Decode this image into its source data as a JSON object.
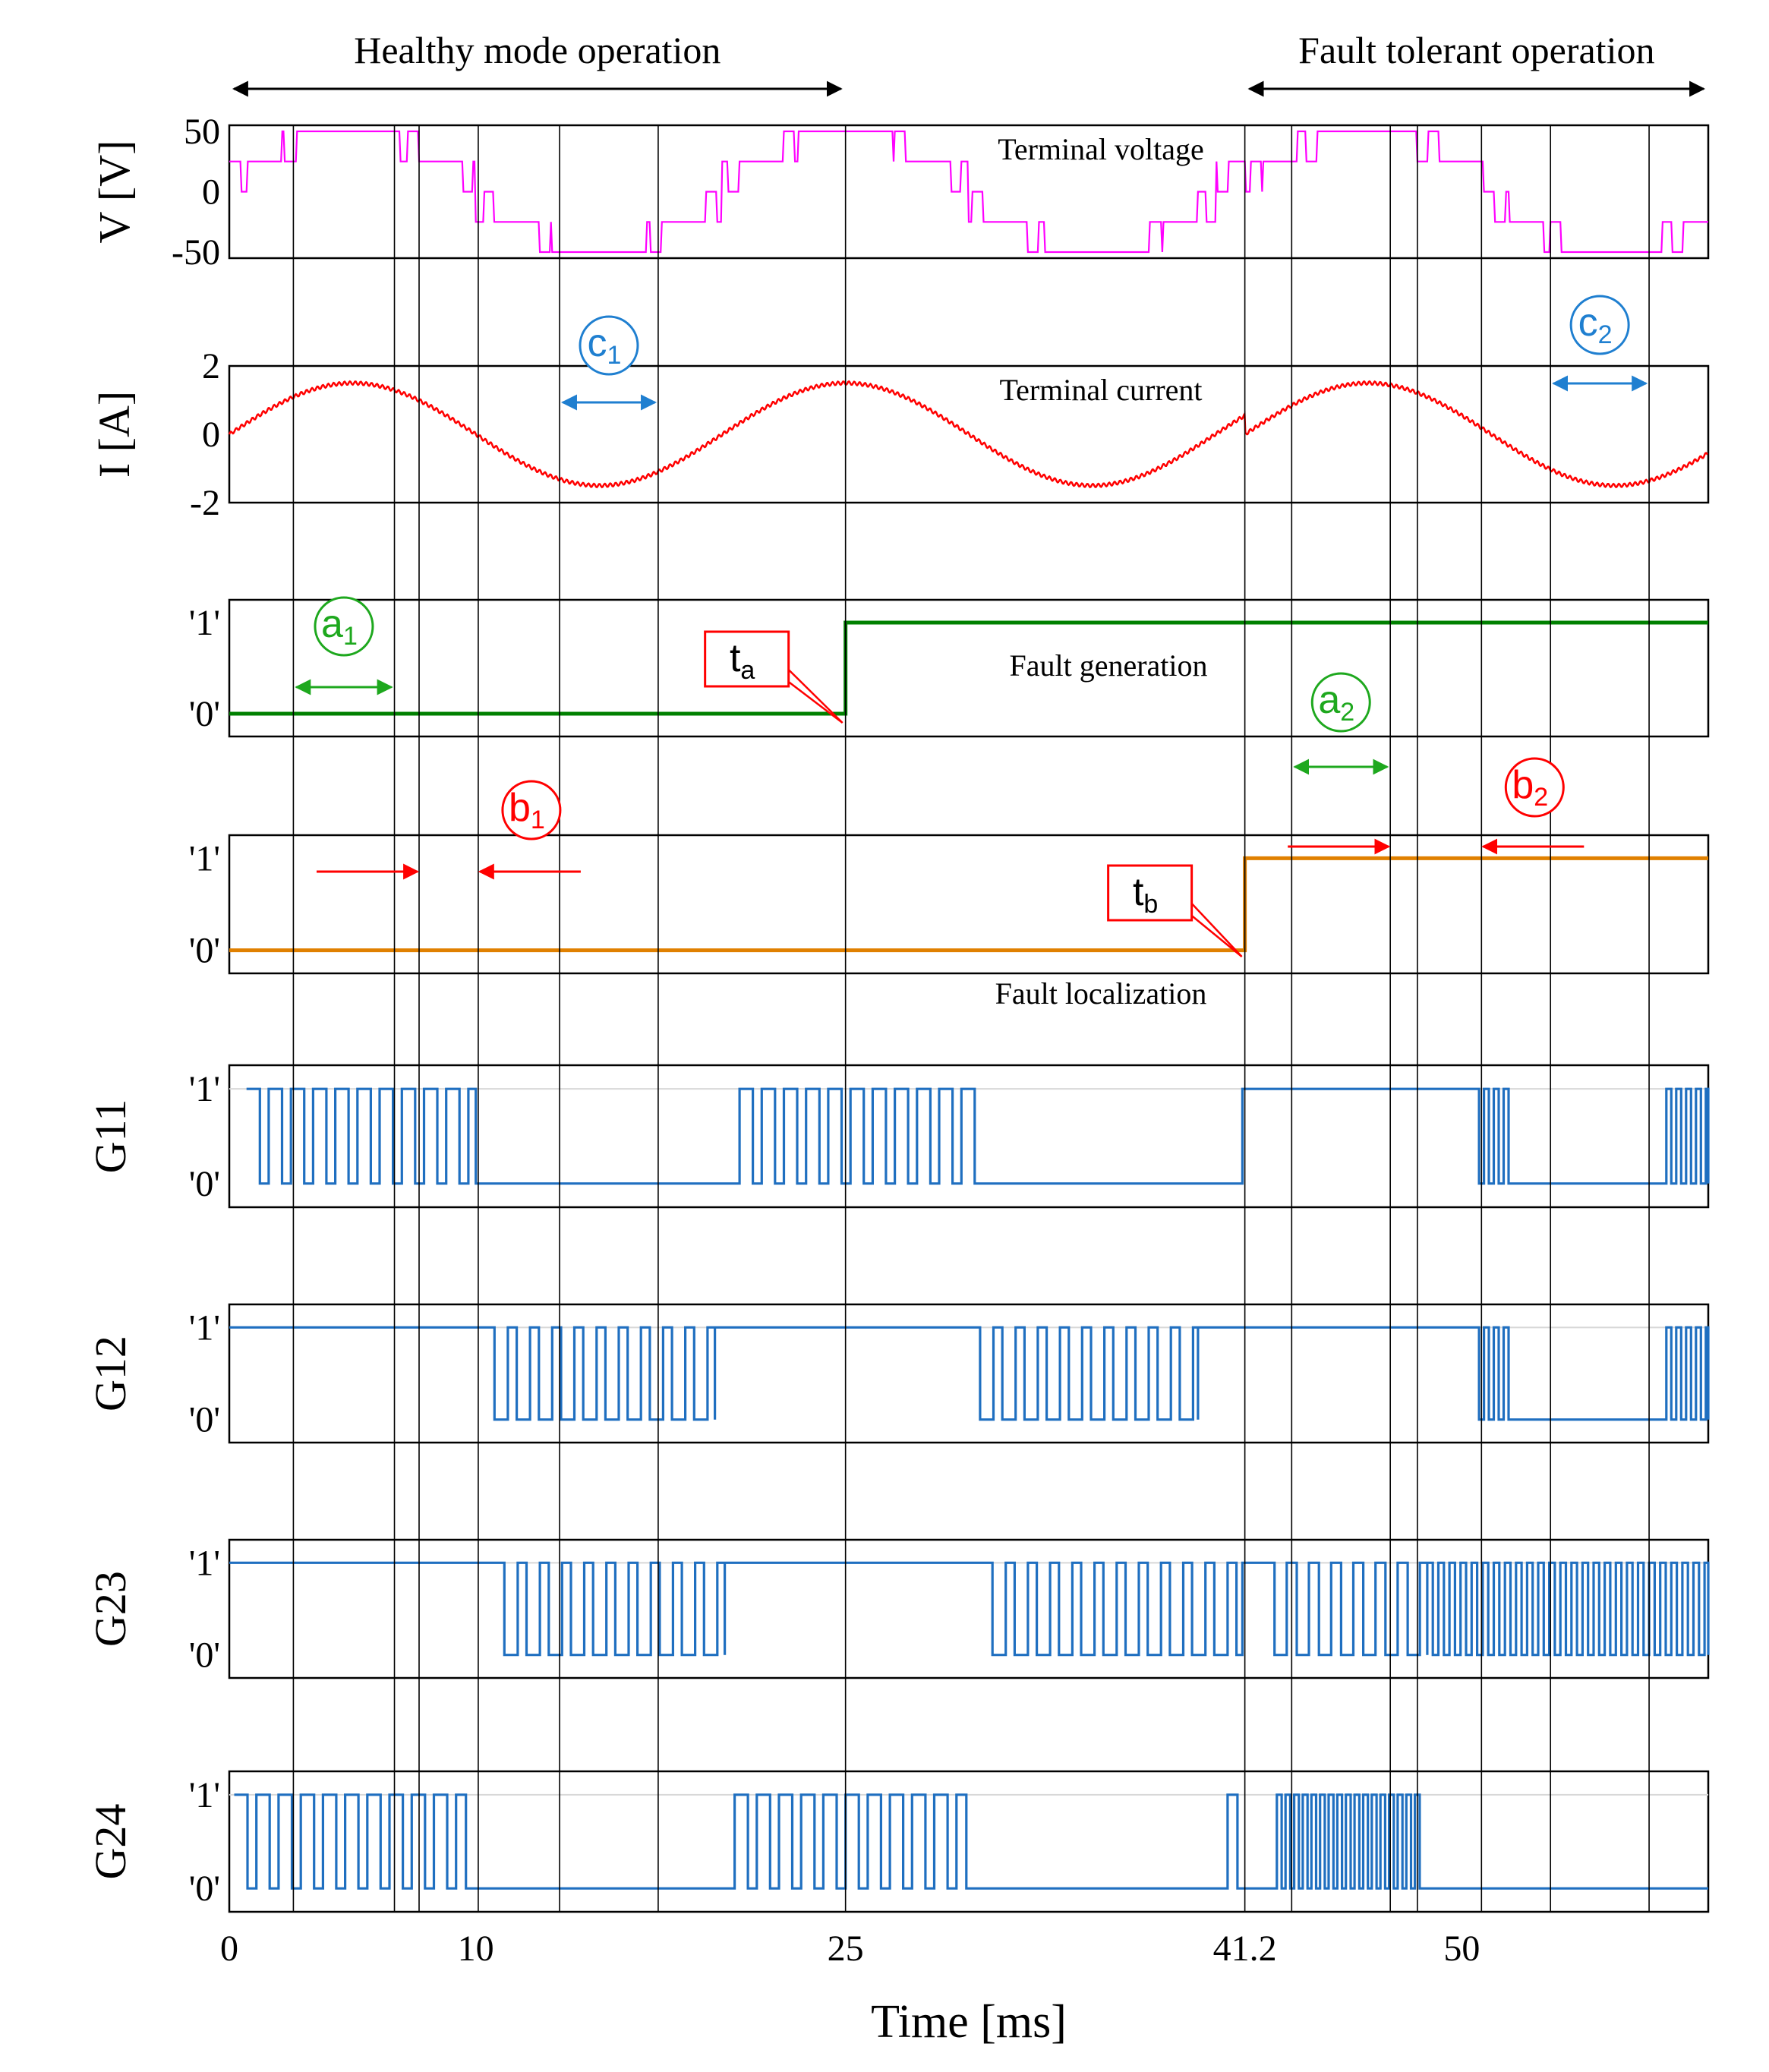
{
  "chart_data": {
    "type": "line",
    "title": "",
    "xlabel": "Time [ms]",
    "xlim": [
      0,
      60
    ],
    "xticks": [
      {
        "value": 0,
        "label": "0"
      },
      {
        "value": 10,
        "label": "10"
      },
      {
        "value": 25,
        "label": "25"
      },
      {
        "value": 41.2,
        "label": "41.2"
      },
      {
        "value": 50,
        "label": "50"
      }
    ],
    "vlines": [
      2.6,
      6.7,
      7.7,
      10.1,
      13.4,
      17.4,
      25,
      41.2,
      43.1,
      47.1,
      48.2,
      50.8,
      53.6,
      57.6
    ],
    "regions": [
      {
        "name": "healthy",
        "label": "Healthy mode operation",
        "from": 0,
        "to": 25
      },
      {
        "name": "fault-tolerant",
        "label": "Fault tolerant operation",
        "from": 41.2,
        "to": 60
      }
    ],
    "panels": [
      {
        "id": "voltage",
        "ylabel": "V [V]",
        "yticks": [
          "50",
          "0",
          "-50"
        ],
        "ylim": [
          -55,
          55
        ],
        "series_label": "Terminal voltage",
        "color": "#ff00ff",
        "kind": "multilevel",
        "amplitude_levels": [
          -50,
          -25,
          0,
          25,
          50
        ],
        "frequency_hz": 50,
        "fault_time": 41.2
      },
      {
        "id": "current",
        "ylabel": "I [A]",
        "yticks": [
          "2",
          "0",
          "-2"
        ],
        "ylim": [
          -2,
          2
        ],
        "series_label": "Terminal current",
        "color": "#ff0000",
        "kind": "sine",
        "amplitude": 1.5,
        "frequency_hz": 50,
        "ripple": 0.05
      },
      {
        "id": "fault-gen",
        "ylabel": "",
        "yticks": [
          "'1'",
          "'0'"
        ],
        "ylim": [
          -0.25,
          1.25
        ],
        "series_label": "Fault generation",
        "color": "#008000",
        "kind": "step",
        "step_at": 25
      },
      {
        "id": "fault-loc",
        "ylabel": "",
        "yticks": [
          "'1'",
          "'0'"
        ],
        "ylim": [
          -0.25,
          1.25
        ],
        "series_label": "Fault localization",
        "color": "#e08000",
        "kind": "step",
        "step_at": 41.2
      },
      {
        "id": "g11",
        "ylabel": "G11",
        "yticks": [
          "'1'",
          "'0'"
        ],
        "ylim": [
          -0.25,
          1.25
        ],
        "series_label": "",
        "color": "#1f6fc0",
        "kind": "pwm",
        "segments": [
          {
            "from": 0.7,
            "to": 10,
            "mode": "pwm",
            "period": 0.9,
            "duty": 0.6
          },
          {
            "from": 10,
            "to": 20.7,
            "mode": "low"
          },
          {
            "from": 20.7,
            "to": 30.3,
            "mode": "pwm",
            "period": 0.9,
            "duty": 0.6
          },
          {
            "from": 30.3,
            "to": 41.1,
            "mode": "low"
          },
          {
            "from": 41.1,
            "to": 50.5,
            "mode": "high"
          },
          {
            "from": 50.5,
            "to": 52,
            "mode": "pwm",
            "period": 0.4,
            "duty": 0.5
          },
          {
            "from": 52,
            "to": 58.3,
            "mode": "low"
          },
          {
            "from": 58.3,
            "to": 60,
            "mode": "pwm",
            "period": 0.4,
            "duty": 0.5
          }
        ]
      },
      {
        "id": "g12",
        "ylabel": "G12",
        "yticks": [
          "'1'",
          "'0'"
        ],
        "ylim": [
          -0.25,
          1.25
        ],
        "series_label": "",
        "color": "#1f6fc0",
        "kind": "pwm",
        "segments": [
          {
            "from": 0,
            "to": 10.4,
            "mode": "high"
          },
          {
            "from": 10.4,
            "to": 19.7,
            "mode": "pwm",
            "period": 0.9,
            "duty": 0.4
          },
          {
            "from": 19.7,
            "to": 30.1,
            "mode": "high"
          },
          {
            "from": 30.1,
            "to": 39.3,
            "mode": "pwm",
            "period": 0.9,
            "duty": 0.4
          },
          {
            "from": 39.3,
            "to": 50.5,
            "mode": "high"
          },
          {
            "from": 50.5,
            "to": 52,
            "mode": "pwm",
            "period": 0.4,
            "duty": 0.5
          },
          {
            "from": 52,
            "to": 58.3,
            "mode": "low"
          },
          {
            "from": 58.3,
            "to": 60,
            "mode": "pwm",
            "period": 0.4,
            "duty": 0.5
          }
        ]
      },
      {
        "id": "g23",
        "ylabel": "G23",
        "yticks": [
          "'1'",
          "'0'"
        ],
        "ylim": [
          -0.25,
          1.25
        ],
        "series_label": "",
        "color": "#1f6fc0",
        "kind": "pwm",
        "segments": [
          {
            "from": 0,
            "to": 10.8,
            "mode": "high"
          },
          {
            "from": 10.8,
            "to": 20.1,
            "mode": "pwm",
            "period": 0.9,
            "duty": 0.4
          },
          {
            "from": 20.1,
            "to": 30.6,
            "mode": "high"
          },
          {
            "from": 30.6,
            "to": 41.1,
            "mode": "pwm",
            "period": 0.9,
            "duty": 0.4
          },
          {
            "from": 41.1,
            "to": 42,
            "mode": "high"
          },
          {
            "from": 42,
            "to": 48.6,
            "mode": "pwm",
            "period": 0.9,
            "duty": 0.45
          },
          {
            "from": 48.6,
            "to": 60,
            "mode": "pwm",
            "period": 0.45,
            "duty": 0.5
          }
        ]
      },
      {
        "id": "g24",
        "ylabel": "G24",
        "yticks": [
          "'1'",
          "'0'"
        ],
        "ylim": [
          -0.25,
          1.25
        ],
        "series_label": "",
        "color": "#1f6fc0",
        "kind": "pwm",
        "segments": [
          {
            "from": 0.2,
            "to": 9.6,
            "mode": "pwm",
            "period": 0.9,
            "duty": 0.6
          },
          {
            "from": 9.6,
            "to": 20.5,
            "mode": "low"
          },
          {
            "from": 20.5,
            "to": 29.9,
            "mode": "pwm",
            "period": 0.9,
            "duty": 0.6
          },
          {
            "from": 29.9,
            "to": 40.5,
            "mode": "low"
          },
          {
            "from": 40.5,
            "to": 40.9,
            "mode": "high"
          },
          {
            "from": 40.9,
            "to": 42.5,
            "mode": "low"
          },
          {
            "from": 42.5,
            "to": 48.4,
            "mode": "pwm",
            "period": 0.35,
            "duty": 0.55
          },
          {
            "from": 48.4,
            "to": 60,
            "mode": "low"
          }
        ]
      }
    ],
    "annotations": [
      {
        "id": "a1",
        "main": "a",
        "sub": "1",
        "color": "#1ea81e",
        "panel": "fault-gen",
        "span": [
          2.6,
          6.7
        ]
      },
      {
        "id": "a2",
        "main": "a",
        "sub": "2",
        "color": "#1ea81e",
        "panel": "fault-gen",
        "span": [
          43.1,
          47.1
        ]
      },
      {
        "id": "b1",
        "main": "b",
        "sub": "1",
        "color": "#ff0000",
        "panel": "fault-loc",
        "inward": [
          7.7,
          10.1
        ]
      },
      {
        "id": "b2",
        "main": "b",
        "sub": "2",
        "color": "#ff0000",
        "panel": "fault-loc",
        "inward": [
          47.1,
          50.8
        ]
      },
      {
        "id": "c1",
        "main": "c",
        "sub": "1",
        "color": "#1f7fd0",
        "panel": "current",
        "span": [
          13.4,
          17.4
        ]
      },
      {
        "id": "c2",
        "main": "c",
        "sub": "2",
        "color": "#1f7fd0",
        "panel": "current",
        "span": [
          53.6,
          57.6
        ]
      }
    ],
    "callouts": [
      {
        "id": "ta",
        "main": "t",
        "sub": "a",
        "color": "#ff0000",
        "panel": "fault-gen",
        "time": 25
      },
      {
        "id": "tb",
        "main": "t",
        "sub": "b",
        "color": "#ff0000",
        "panel": "fault-loc",
        "time": 41.2
      }
    ]
  }
}
